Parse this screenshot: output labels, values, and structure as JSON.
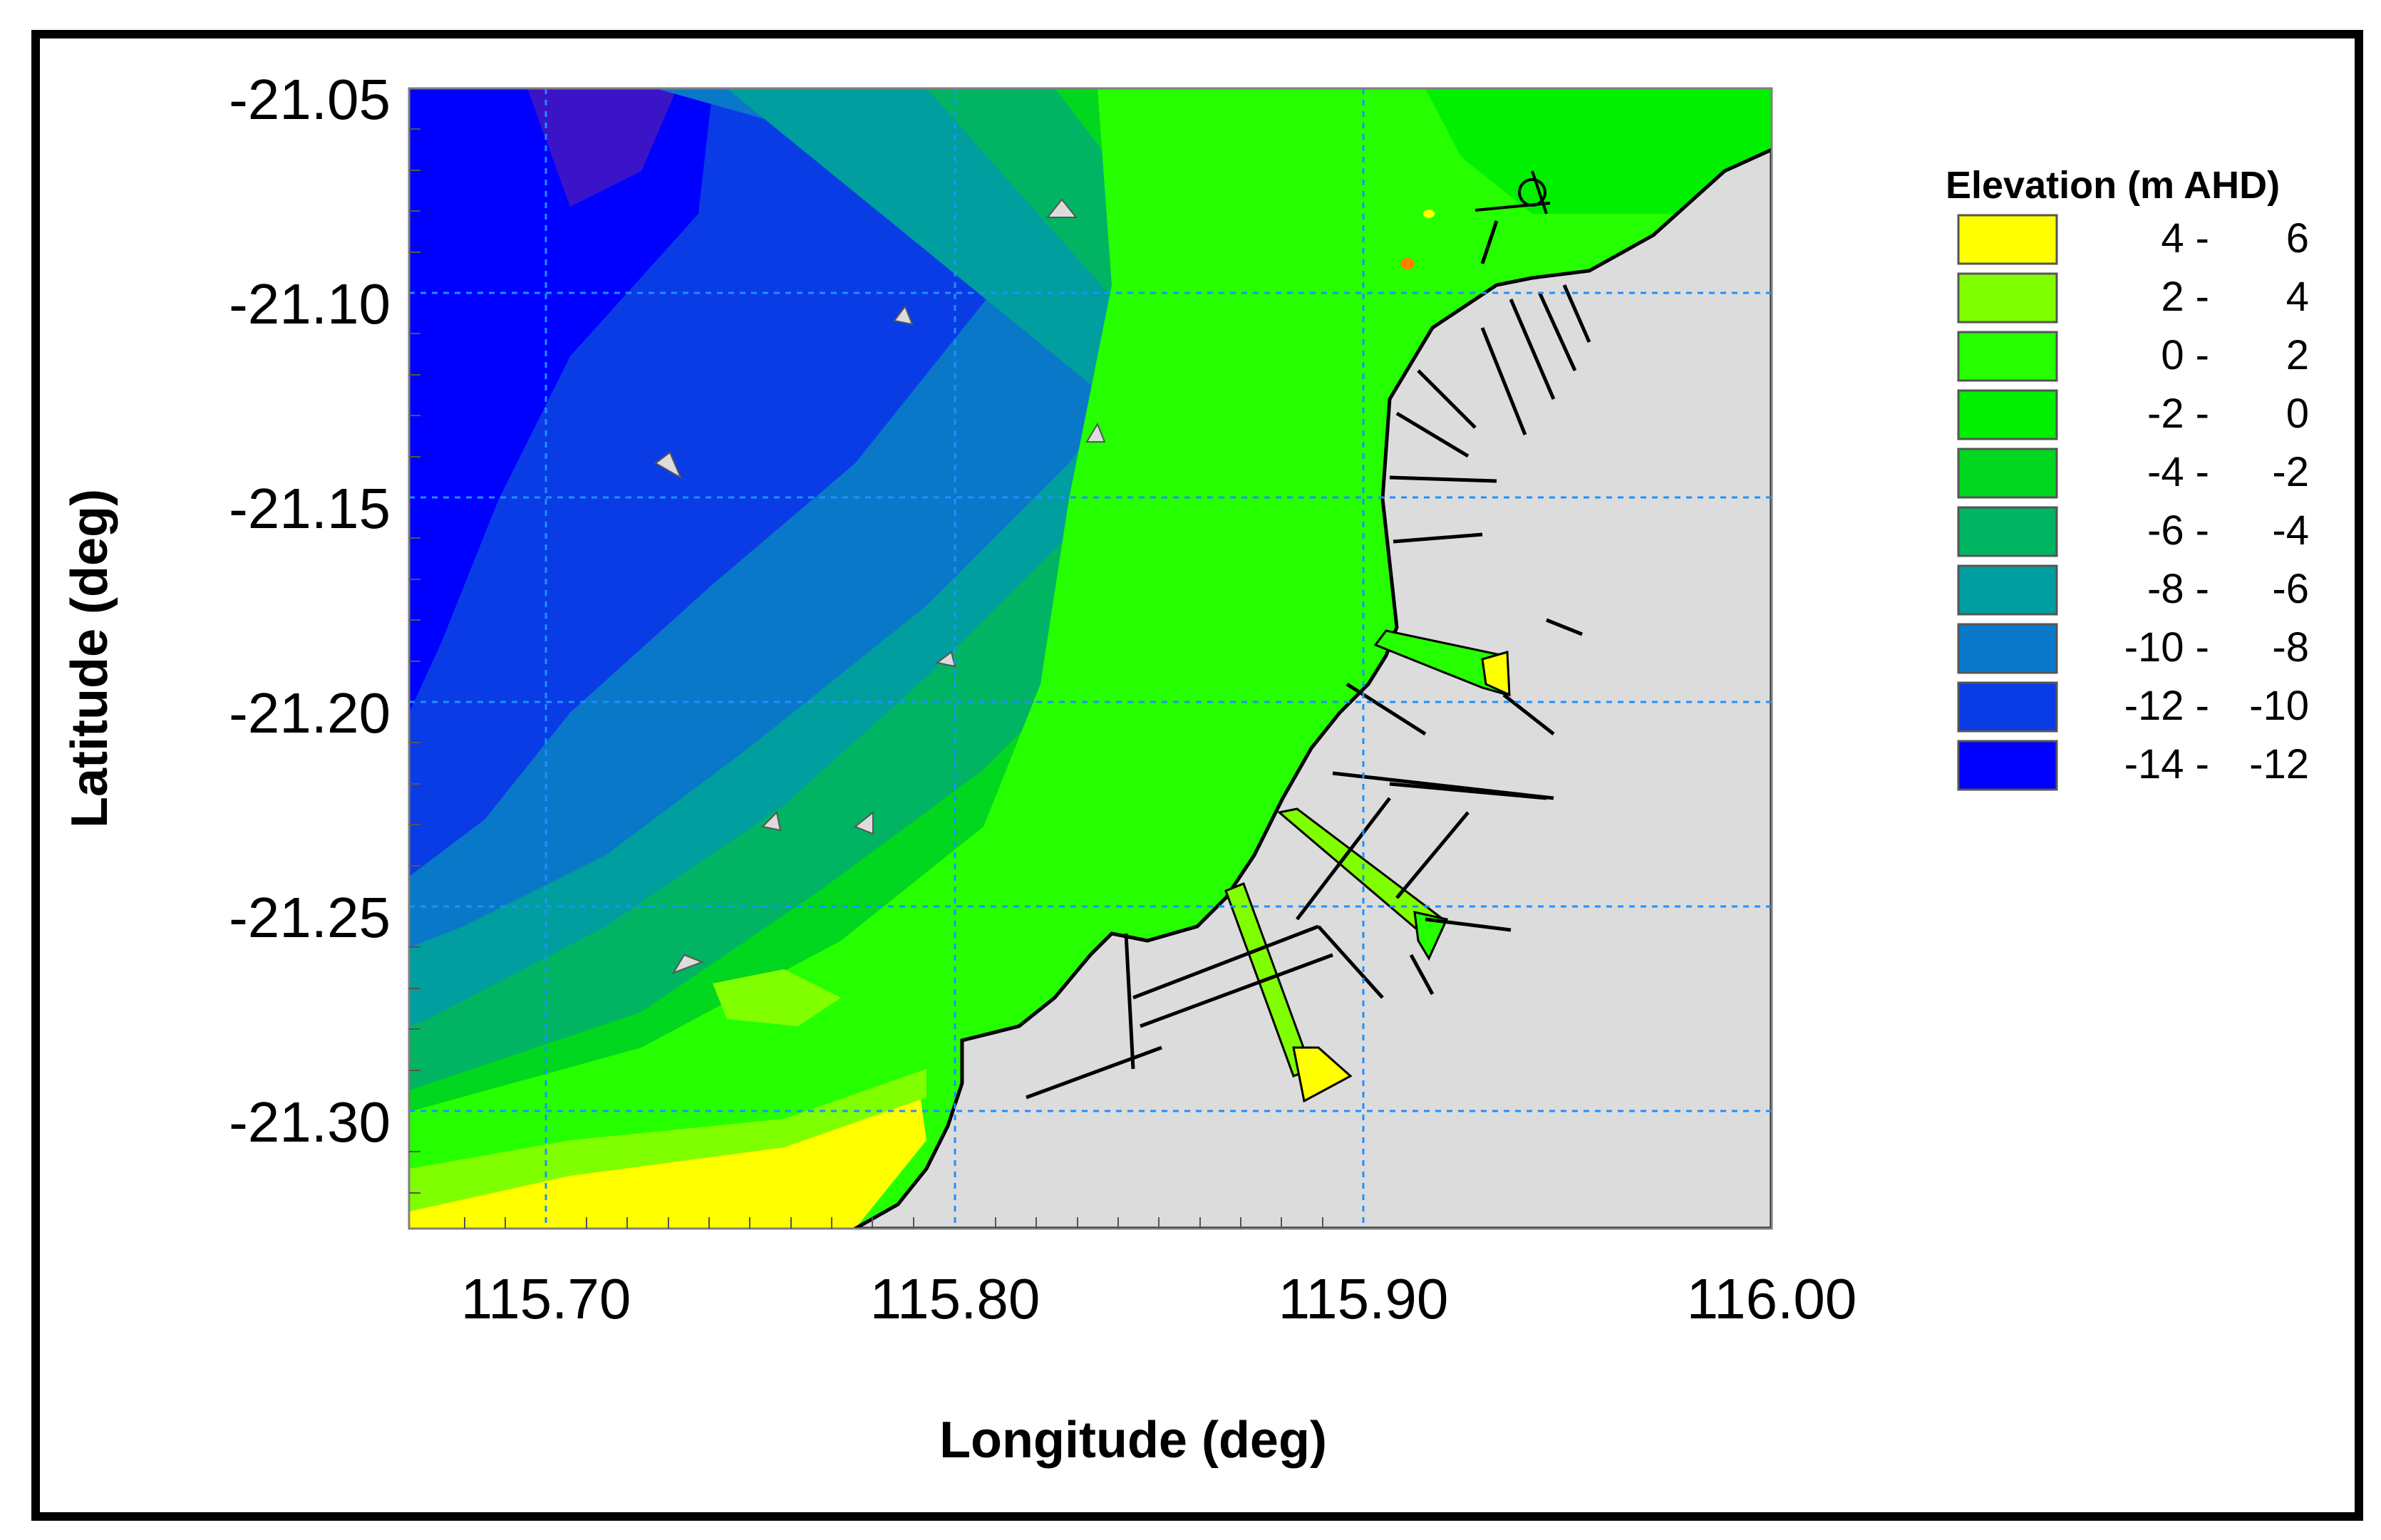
{
  "map": {
    "x_ticks": [
      "115.70",
      "115.80",
      "115.90",
      "116.00"
    ],
    "y_ticks": [
      "-21.05",
      "-21.10",
      "-21.15",
      "-21.20",
      "-21.25",
      "-21.30"
    ],
    "x_label": "Longitude (deg)",
    "y_label": "Latitude (deg)"
  },
  "legend": {
    "title": "Elevation (m AHD)",
    "items": [
      {
        "from": "4 -",
        "to": "6",
        "color": "#FFFF00"
      },
      {
        "from": "2 -",
        "to": "4",
        "color": "#80FF00"
      },
      {
        "from": "0 -",
        "to": "2",
        "color": "#26FF00"
      },
      {
        "from": "-2 -",
        "to": "0",
        "color": "#00F000"
      },
      {
        "from": "-4 -",
        "to": "-2",
        "color": "#00D71E"
      },
      {
        "from": "-6 -",
        "to": "-4",
        "color": "#00B464"
      },
      {
        "from": "-8 -",
        "to": "-6",
        "color": "#009E9E"
      },
      {
        "from": "-10 -",
        "to": "-8",
        "color": "#0A78C8"
      },
      {
        "from": "-12 -",
        "to": "-10",
        "color": "#0A3CE6"
      },
      {
        "from": "-14 -",
        "to": "-12",
        "color": "#0000FF"
      }
    ]
  },
  "colors": {
    "land": "#DCDCDC",
    "grid": "#1E90FF",
    "deep_purple": "#3C14C8"
  }
}
